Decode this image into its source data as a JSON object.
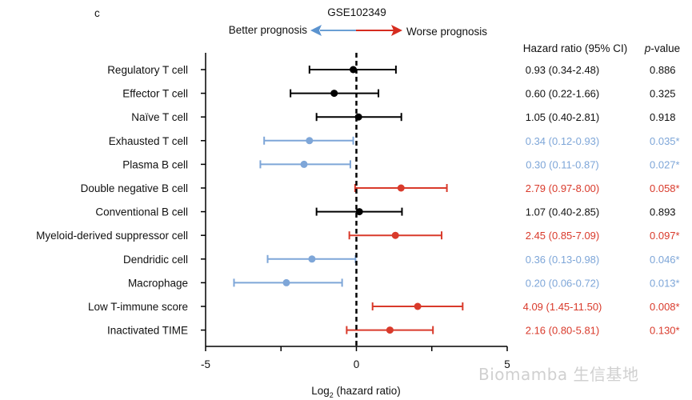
{
  "panel_label": "c",
  "chart_data": {
    "type": "forest",
    "title": "GSE102349",
    "direction_labels": {
      "left": "Better prognosis",
      "right": "Worse prognosis"
    },
    "xlabel": "Log2 (hazard ratio)",
    "xlabel_parts": {
      "main": "Log",
      "sub": "2",
      "rest": " (hazard ratio)"
    },
    "xlim": [
      -5,
      5
    ],
    "xticks": [
      -5,
      -2.5,
      0,
      2.5,
      5
    ],
    "xtick_labels": [
      "-5",
      "",
      "0",
      "",
      "5"
    ],
    "reference_line": 0,
    "table_headers": {
      "hr": "Hazard ratio (95% CI)",
      "p_italic": "p",
      "p_rest": "-value"
    },
    "colors": {
      "neutral": "#000000",
      "protective": "#7ea6d8",
      "risk": "#d93a2b"
    },
    "rows": [
      {
        "label": "Regulatory T cell",
        "hr": 0.93,
        "lo": 0.34,
        "hi": 2.48,
        "hr_text": "0.93 (0.34-2.48)",
        "p_text": "0.886",
        "group": "neutral"
      },
      {
        "label": "Effector T cell",
        "hr": 0.6,
        "lo": 0.22,
        "hi": 1.66,
        "hr_text": "0.60 (0.22-1.66)",
        "p_text": "0.325",
        "group": "neutral"
      },
      {
        "label": "Naïve T cell",
        "hr": 1.05,
        "lo": 0.4,
        "hi": 2.81,
        "hr_text": "1.05 (0.40-2.81)",
        "p_text": "0.918",
        "group": "neutral"
      },
      {
        "label": "Exhausted T cell",
        "hr": 0.34,
        "lo": 0.12,
        "hi": 0.93,
        "hr_text": "0.34 (0.12-0.93)",
        "p_text": "0.035*",
        "group": "protective"
      },
      {
        "label": "Plasma B cell",
        "hr": 0.3,
        "lo": 0.11,
        "hi": 0.87,
        "hr_text": "0.30 (0.11-0.87)",
        "p_text": "0.027*",
        "group": "protective"
      },
      {
        "label": "Double negative B cell",
        "hr": 2.79,
        "lo": 0.97,
        "hi": 8.0,
        "hr_text": "2.79 (0.97-8.00)",
        "p_text": "0.058*",
        "group": "risk"
      },
      {
        "label": "Conventional B cell",
        "hr": 1.07,
        "lo": 0.4,
        "hi": 2.85,
        "hr_text": "1.07 (0.40-2.85)",
        "p_text": "0.893",
        "group": "neutral"
      },
      {
        "label": "Myeloid-derived suppressor cell",
        "hr": 2.45,
        "lo": 0.85,
        "hi": 7.09,
        "hr_text": "2.45 (0.85-7.09)",
        "p_text": "0.097*",
        "group": "risk"
      },
      {
        "label": "Dendridic cell",
        "hr": 0.36,
        "lo": 0.13,
        "hi": 0.98,
        "hr_text": "0.36 (0.13-0.98)",
        "p_text": "0.046*",
        "group": "protective"
      },
      {
        "label": "Macrophage",
        "hr": 0.2,
        "lo": 0.06,
        "hi": 0.72,
        "hr_text": "0.20 (0.06-0.72)",
        "p_text": "0.013*",
        "group": "protective"
      },
      {
        "label": "Low T-immune score",
        "hr": 4.09,
        "lo": 1.45,
        "hi": 11.5,
        "hr_text": "4.09 (1.45-11.50)",
        "p_text": "0.008*",
        "group": "risk"
      },
      {
        "label": "Inactivated TIME",
        "hr": 2.16,
        "lo": 0.8,
        "hi": 5.81,
        "hr_text": "2.16 (0.80-5.81)",
        "p_text": "0.130*",
        "group": "risk"
      }
    ]
  },
  "watermark": "Biomamba 生信基地"
}
